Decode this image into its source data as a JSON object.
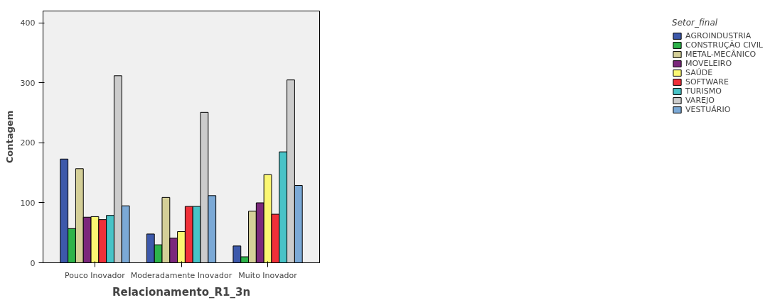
{
  "chart_data": {
    "type": "bar",
    "xlabel": "Relacionamento_R1_3n",
    "ylabel": "Contagem",
    "legend_title": "Setor_final",
    "categories": [
      "Pouco Inovador",
      "Moderadamente Inovador",
      "Muito Inovador"
    ],
    "series": [
      {
        "name": "AGROINDUSTRIA",
        "color": "#3d59ab",
        "values": [
          173,
          48,
          28
        ]
      },
      {
        "name": "CONSTRUÇÃO CIVIL",
        "color": "#2db34a",
        "values": [
          57,
          30,
          10
        ]
      },
      {
        "name": "METAL-MECÂNICO",
        "color": "#d4cf98",
        "values": [
          157,
          109,
          86
        ]
      },
      {
        "name": "MOVELEIRO",
        "color": "#7b287c",
        "values": [
          76,
          41,
          100
        ]
      },
      {
        "name": "SAÚDE",
        "color": "#fbf772",
        "values": [
          77,
          52,
          147
        ]
      },
      {
        "name": "SOFTWARE",
        "color": "#f03039",
        "values": [
          72,
          94,
          81
        ]
      },
      {
        "name": "TURISMO",
        "color": "#48c3c7",
        "values": [
          79,
          94,
          185
        ]
      },
      {
        "name": "VAREJO",
        "color": "#cccccc",
        "values": [
          312,
          251,
          305
        ]
      },
      {
        "name": "VESTUÁRIO",
        "color": "#7ba9d6",
        "values": [
          95,
          112,
          129
        ]
      }
    ],
    "ylim": [
      0,
      420
    ],
    "yticks": [
      0,
      100,
      200,
      300,
      400
    ],
    "grid": false,
    "legend": "right"
  }
}
